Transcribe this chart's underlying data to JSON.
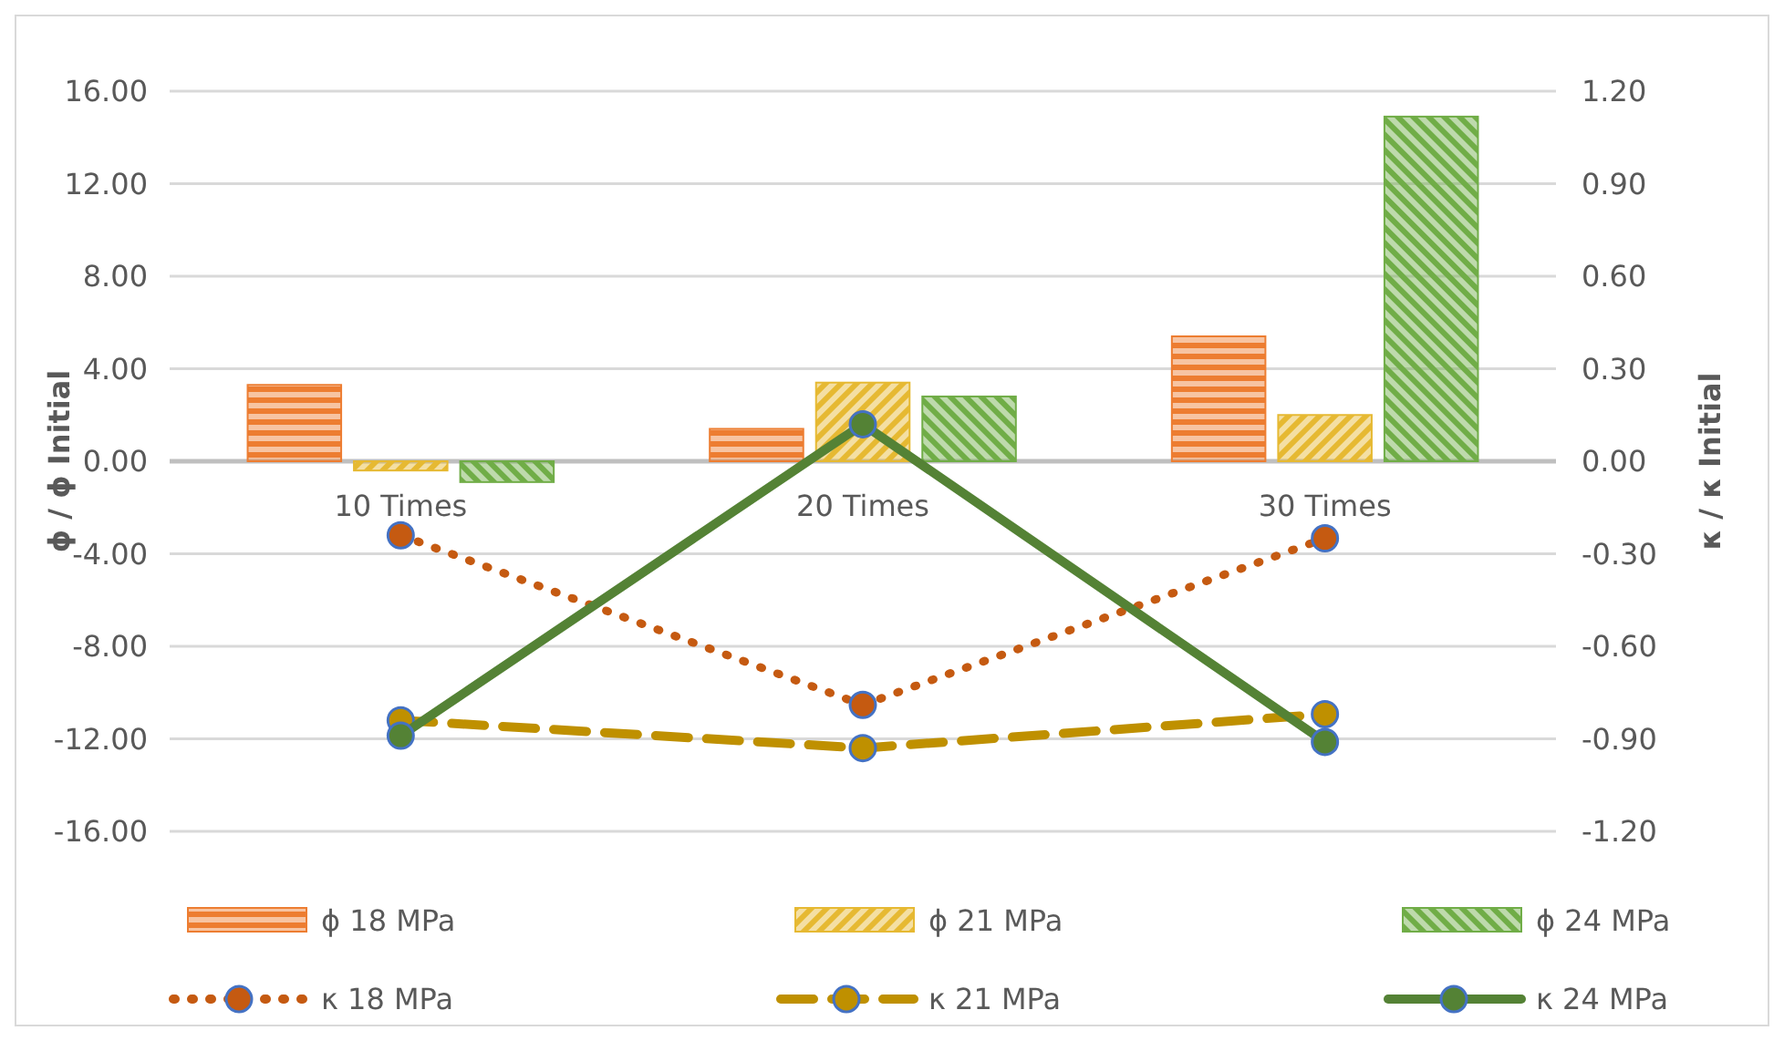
{
  "chart_data": {
    "type": "bar",
    "categories": [
      "10 Times",
      "20 Times",
      "30 Times"
    ],
    "ylabel": "ϕ / ϕ Initial",
    "y2label": "κ / κ Initial",
    "ylim": [
      -16,
      16
    ],
    "yticks": [
      {
        "value": -16,
        "label": "-16.00"
      },
      {
        "value": -12,
        "label": "-12.00"
      },
      {
        "value": -8,
        "label": "-8.00"
      },
      {
        "value": -4,
        "label": "-4.00"
      },
      {
        "value": 0,
        "label": "0.00"
      },
      {
        "value": 4,
        "label": "4.00"
      },
      {
        "value": 8,
        "label": "8.00"
      },
      {
        "value": 12,
        "label": "12.00"
      },
      {
        "value": 16,
        "label": "16.00"
      }
    ],
    "y2lim": [
      -1.2,
      1.2
    ],
    "y2ticks": [
      {
        "value": -1.2,
        "label": "-1.20"
      },
      {
        "value": -0.9,
        "label": "-0.90"
      },
      {
        "value": -0.6,
        "label": "-0.60"
      },
      {
        "value": -0.3,
        "label": "-0.30"
      },
      {
        "value": 0,
        "label": "0.00"
      },
      {
        "value": 0.3,
        "label": "0.30"
      },
      {
        "value": 0.6,
        "label": "0.60"
      },
      {
        "value": 0.9,
        "label": "0.90"
      },
      {
        "value": 1.2,
        "label": "1.20"
      }
    ],
    "grid": "y",
    "legend": "bottom",
    "series": [
      {
        "name": "ϕ 18 MPa",
        "color": "#ed7d31",
        "values": [
          3.3,
          1.4,
          5.4
        ]
      },
      {
        "name": "ϕ 21 MPa",
        "color": "#e6b932",
        "values": [
          -0.4,
          3.4,
          2.0
        ]
      },
      {
        "name": "ϕ 24 MPa",
        "color": "#70ad47",
        "values": [
          -0.9,
          2.8,
          14.9
        ]
      },
      {
        "name": "κ 18 MPa",
        "type": "line",
        "axis": "y2",
        "color": "#c55a11",
        "line_style": "dotted",
        "marker": "circle",
        "values": [
          -0.24,
          -0.79,
          -0.25
        ]
      },
      {
        "name": "κ 21 MPa",
        "type": "line",
        "axis": "y2",
        "color": "#bf9000",
        "line_style": "dashed",
        "marker": "circle",
        "values": [
          -0.84,
          -0.93,
          -0.82
        ]
      },
      {
        "name": "κ 24 MPa",
        "type": "line",
        "axis": "y2",
        "color": "#548235",
        "line_style": "solid",
        "marker": "circle",
        "values": [
          -0.89,
          0.12,
          -0.91
        ]
      }
    ]
  }
}
